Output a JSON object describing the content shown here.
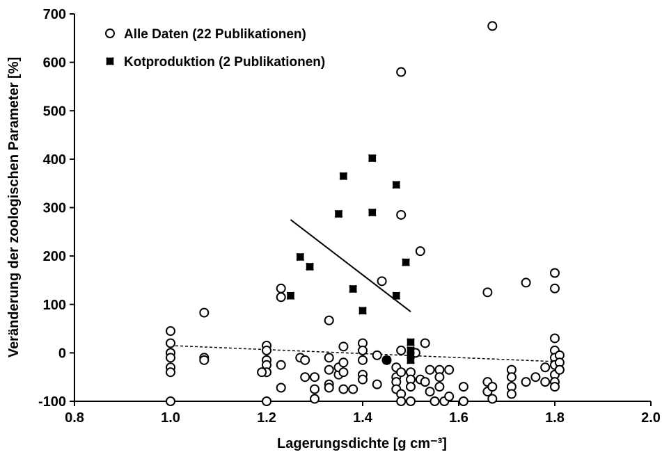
{
  "chart_data": {
    "type": "scatter",
    "xlabel": "Lagerungsdichte [g cm⁻³]",
    "ylabel": "Veränderung der zoologischen Parameter [%]",
    "xlim": [
      0.8,
      2.0
    ],
    "ylim": [
      -100,
      700
    ],
    "xticks": [
      0.8,
      {
        "value": 1,
        "label": "1.0"
      },
      1.2,
      1.4,
      1.6,
      1.8,
      {
        "value": 2,
        "label": "2.0"
      }
    ],
    "yticks": [
      -100,
      0,
      100,
      200,
      300,
      400,
      500,
      600,
      700
    ],
    "grid": false,
    "legend": "top-left",
    "series": [
      {
        "name": "Alle Daten (22 Publikationen)",
        "marker": "circle",
        "color": "#000000",
        "x": [
          1.0,
          1.0,
          1.0,
          1.0,
          1.0,
          1.0,
          1.0,
          1.07,
          1.07,
          1.07,
          1.2,
          1.2,
          1.2,
          1.2,
          1.2,
          1.19,
          1.2,
          1.23,
          1.23,
          1.23,
          1.23,
          1.27,
          1.28,
          1.28,
          1.3,
          1.3,
          1.3,
          1.33,
          1.33,
          1.33,
          1.33,
          1.33,
          1.35,
          1.35,
          1.36,
          1.36,
          1.36,
          1.36,
          1.38,
          1.4,
          1.4,
          1.4,
          1.4,
          1.4,
          1.43,
          1.43,
          1.44,
          1.45,
          1.47,
          1.47,
          1.47,
          1.47,
          1.48,
          1.48,
          1.48,
          1.48,
          1.48,
          1.48,
          1.5,
          1.5,
          1.5,
          1.5,
          1.51,
          1.52,
          1.52,
          1.53,
          1.53,
          1.54,
          1.54,
          1.55,
          1.56,
          1.56,
          1.56,
          1.57,
          1.58,
          1.58,
          1.61,
          1.61,
          1.66,
          1.66,
          1.66,
          1.67,
          1.67,
          1.67,
          1.71,
          1.71,
          1.71,
          1.71,
          1.74,
          1.74,
          1.76,
          1.78,
          1.78,
          1.8,
          1.8,
          1.8,
          1.8,
          1.8,
          1.8,
          1.8,
          1.8,
          1.8,
          1.81,
          1.81,
          1.81
        ],
        "values": [
          45,
          20,
          0,
          -10,
          -30,
          -40,
          -100,
          83,
          -10,
          -15,
          15,
          5,
          -15,
          -25,
          -40,
          -40,
          -100,
          133,
          115,
          -25,
          -72,
          -10,
          -15,
          -50,
          -50,
          -75,
          -95,
          67,
          -10,
          -35,
          -65,
          -72,
          -45,
          -30,
          13,
          -20,
          -40,
          -75,
          -75,
          20,
          5,
          -15,
          -45,
          -55,
          -5,
          -65,
          148,
          -15,
          -30,
          -50,
          -60,
          -75,
          580,
          285,
          5,
          -40,
          -85,
          -100,
          -40,
          -55,
          -70,
          -100,
          0,
          210,
          -55,
          20,
          -60,
          -35,
          -80,
          -100,
          -35,
          -50,
          -70,
          -100,
          -35,
          -90,
          -70,
          -100,
          125,
          -60,
          -80,
          675,
          -70,
          -95,
          -35,
          -50,
          -70,
          -85,
          145,
          -60,
          -50,
          -30,
          -60,
          165,
          133,
          30,
          5,
          -10,
          -25,
          -45,
          -60,
          -70,
          -5,
          -20,
          -35
        ]
      },
      {
        "name": "Kotproduktion (2 Publikationen)",
        "marker": "x",
        "color": "#000000",
        "x": [
          1.25,
          1.27,
          1.29,
          1.35,
          1.36,
          1.38,
          1.4,
          1.42,
          1.42,
          1.47,
          1.47,
          1.49,
          1.5,
          1.5,
          1.5,
          1.5,
          1.45
        ],
        "values": [
          118,
          198,
          178,
          287,
          365,
          132,
          87,
          402,
          290,
          347,
          118,
          187,
          22,
          5,
          -5,
          -15,
          -15
        ]
      }
    ],
    "fits": [
      {
        "x": [
          1.25,
          1.5
        ],
        "values": [
          275,
          85
        ],
        "dashed": false
      },
      {
        "x": [
          1.0,
          1.8
        ],
        "values": [
          15,
          -18
        ],
        "dashed": true
      }
    ]
  }
}
